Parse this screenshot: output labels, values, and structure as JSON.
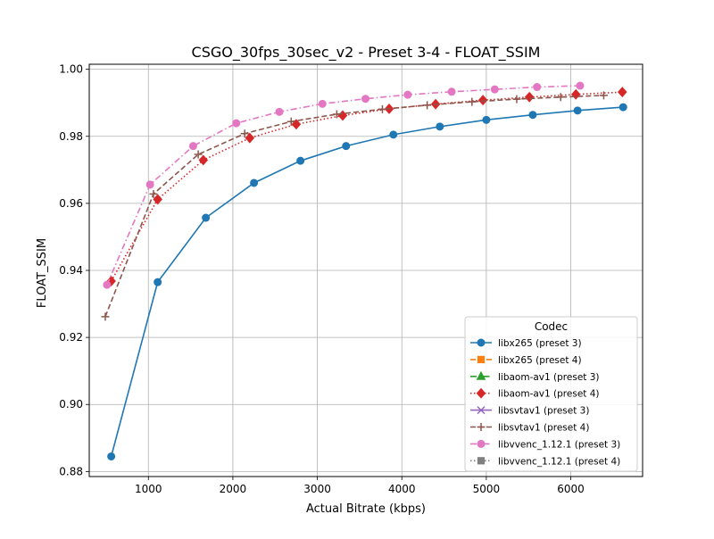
{
  "chart_data": {
    "type": "line",
    "title": "CSGO_30fps_30sec_v2 - Preset 3-4 - FLOAT_SSIM",
    "xlabel": "Actual Bitrate (kbps)",
    "ylabel": "FLOAT_SSIM",
    "xlim": [
      300,
      6850
    ],
    "ylim": [
      0.8785,
      1.0015
    ],
    "xticks": [
      1000,
      2000,
      3000,
      4000,
      5000,
      6000
    ],
    "xtick_labels": [
      "1000",
      "2000",
      "3000",
      "4000",
      "5000",
      "6000"
    ],
    "yticks": [
      0.88,
      0.9,
      0.92,
      0.94,
      0.96,
      0.98,
      1.0
    ],
    "ytick_labels": [
      "0.88",
      "0.90",
      "0.92",
      "0.94",
      "0.96",
      "0.98",
      "1.00"
    ],
    "grid": true,
    "legend_title": "Codec",
    "legend_position": "lower-right",
    "series": [
      {
        "name": "libx265 (preset 3)",
        "color": "#1f77b4",
        "marker": "circle",
        "linestyle": "solid",
        "x": [
          560,
          1110,
          1680,
          2250,
          2800,
          3340,
          3900,
          4450,
          5000,
          5550,
          6080,
          6620
        ],
        "y": [
          0.8845,
          0.9365,
          0.9557,
          0.9661,
          0.9727,
          0.9771,
          0.9805,
          0.9829,
          0.9849,
          0.9864,
          0.9877,
          0.9887
        ]
      },
      {
        "name": "libx265 (preset 4)",
        "color": "#ff7f0e",
        "marker": "square",
        "linestyle": "dashed",
        "x": [],
        "y": []
      },
      {
        "name": "libaom-av1 (preset 3)",
        "color": "#2ca02c",
        "marker": "triangle",
        "linestyle": "dashdot",
        "x": [],
        "y": []
      },
      {
        "name": "libaom-av1 (preset 4)",
        "color": "#d62728",
        "marker": "diamond",
        "linestyle": "dotted",
        "x": [
          560,
          1110,
          1650,
          2200,
          2750,
          3300,
          3850,
          4400,
          4960,
          5510,
          6060,
          6610
        ],
        "y": [
          0.9368,
          0.9612,
          0.9729,
          0.9795,
          0.9836,
          0.9862,
          0.9882,
          0.9896,
          0.9908,
          0.9917,
          0.9925,
          0.9932
        ]
      },
      {
        "name": "libsvtav1 (preset 3)",
        "color": "#9467bd",
        "marker": "x",
        "linestyle": "solid",
        "x": [],
        "y": []
      },
      {
        "name": "libsvtav1 (preset 4)",
        "color": "#8c564b",
        "marker": "plus",
        "linestyle": "dashed",
        "x": [
          490,
          1060,
          1590,
          2140,
          2690,
          3230,
          3770,
          4300,
          4830,
          5360,
          5880,
          6390
        ],
        "y": [
          0.9262,
          0.9628,
          0.9746,
          0.9808,
          0.9844,
          0.9866,
          0.9881,
          0.9893,
          0.9903,
          0.9911,
          0.9917,
          0.9922
        ]
      },
      {
        "name": "libvvenc_1.12.1 (preset 3)",
        "color": "#e377c2",
        "marker": "circle",
        "linestyle": "dashdot",
        "x": [
          510,
          1020,
          1530,
          2040,
          2550,
          3060,
          3570,
          4070,
          4590,
          5100,
          5600,
          6110
        ],
        "y": [
          0.9357,
          0.9656,
          0.9771,
          0.9839,
          0.9873,
          0.9897,
          0.9912,
          0.9924,
          0.9933,
          0.994,
          0.9947,
          0.9951
        ]
      },
      {
        "name": "libvvenc_1.12.1 (preset 4)",
        "color": "#7f7f7f",
        "marker": "square",
        "linestyle": "dotted",
        "x": [],
        "y": []
      }
    ]
  }
}
